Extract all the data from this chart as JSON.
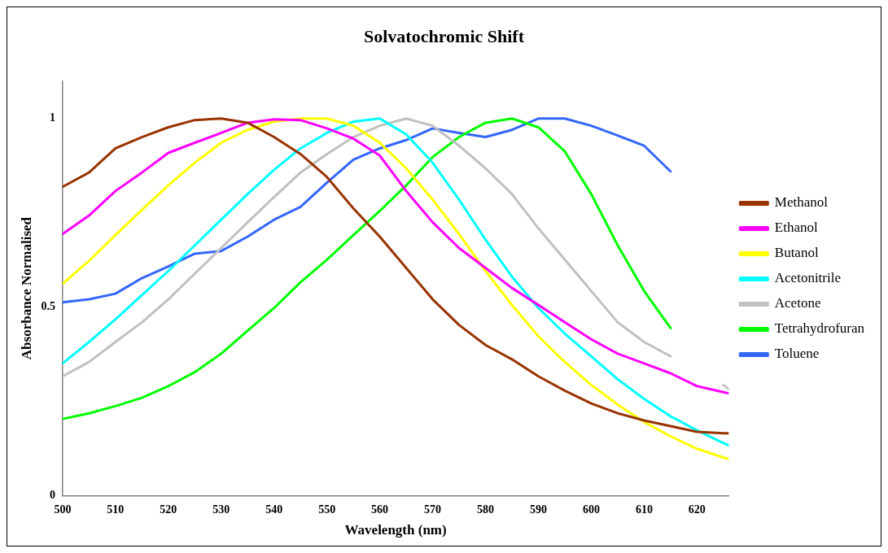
{
  "chart_data": {
    "type": "line",
    "title": "Solvatochromic Shift",
    "xlabel": "Wavelength (nm)",
    "ylabel": "Absorbance Normalised",
    "x": [
      500,
      505,
      510,
      515,
      520,
      525,
      530,
      535,
      540,
      545,
      550,
      555,
      560,
      565,
      570,
      575,
      580,
      585,
      590,
      595,
      600,
      605,
      610,
      615,
      620,
      625,
      626
    ],
    "xlim": [
      500,
      626
    ],
    "xticks": [
      500,
      510,
      520,
      530,
      540,
      550,
      560,
      570,
      580,
      590,
      600,
      610,
      620
    ],
    "ylim": [
      0,
      1.1
    ],
    "yticks": [
      0,
      0.5,
      1
    ],
    "grid": false,
    "legend": "right",
    "marker": "none",
    "line_style": "solid",
    "series": [
      {
        "name": "Methanol",
        "color": "#993300",
        "values": [
          0.819,
          0.857,
          0.921,
          0.951,
          0.977,
          0.996,
          1.0,
          0.989,
          0.951,
          0.906,
          0.845,
          0.762,
          0.687,
          0.604,
          0.521,
          0.453,
          0.4,
          0.362,
          0.317,
          0.279,
          0.245,
          0.219,
          0.2,
          0.185,
          0.17,
          0.166,
          0.166
        ]
      },
      {
        "name": "Ethanol",
        "color": "#ff00ff",
        "values": [
          0.694,
          0.743,
          0.808,
          0.857,
          0.909,
          0.936,
          0.962,
          0.989,
          0.998,
          0.996,
          0.974,
          0.947,
          0.902,
          0.808,
          0.725,
          0.657,
          0.604,
          0.551,
          0.506,
          0.46,
          0.415,
          0.377,
          0.351,
          0.325,
          0.291,
          0.275,
          0.272
        ]
      },
      {
        "name": "Butanol",
        "color": "#ffff00",
        "values": [
          0.562,
          0.623,
          0.691,
          0.758,
          0.823,
          0.883,
          0.936,
          0.97,
          0.992,
          1.0,
          1.0,
          0.981,
          0.936,
          0.868,
          0.785,
          0.694,
          0.596,
          0.506,
          0.423,
          0.355,
          0.294,
          0.242,
          0.196,
          0.158,
          0.125,
          0.102,
          0.098
        ]
      },
      {
        "name": "Acetonitrile",
        "color": "#00ffff",
        "values": [
          0.351,
          0.408,
          0.468,
          0.532,
          0.596,
          0.664,
          0.732,
          0.8,
          0.864,
          0.921,
          0.962,
          0.992,
          1.0,
          0.958,
          0.883,
          0.785,
          0.679,
          0.581,
          0.498,
          0.43,
          0.37,
          0.309,
          0.257,
          0.211,
          0.174,
          0.14,
          0.134
        ]
      },
      {
        "name": "Acetone",
        "color": "#c0c0c0",
        "values": [
          0.317,
          0.355,
          0.408,
          0.46,
          0.521,
          0.589,
          0.657,
          0.725,
          0.792,
          0.857,
          0.906,
          0.951,
          0.981,
          1.0,
          0.981,
          0.928,
          0.868,
          0.8,
          0.709,
          0.626,
          0.543,
          0.46,
          0.408,
          0.37,
          null,
          0.294,
          0.283
        ]
      },
      {
        "name": "Tetrahydrofuran",
        "color": "#00ff00",
        "values": [
          0.204,
          0.219,
          0.238,
          0.26,
          0.291,
          0.328,
          0.377,
          0.438,
          0.498,
          0.566,
          0.626,
          0.691,
          0.755,
          0.823,
          0.898,
          0.951,
          0.989,
          1.0,
          0.977,
          0.913,
          0.8,
          0.664,
          0.543,
          0.445,
          null,
          null,
          null
        ]
      },
      {
        "name": "Toluene",
        "color": "#3366ff",
        "values": [
          0.513,
          0.521,
          0.536,
          0.577,
          0.608,
          0.642,
          0.649,
          0.687,
          0.732,
          0.766,
          0.83,
          0.891,
          0.921,
          0.943,
          0.974,
          0.962,
          0.951,
          0.97,
          1.0,
          1.0,
          0.981,
          0.955,
          0.928,
          0.86,
          null,
          null,
          null
        ]
      }
    ]
  }
}
